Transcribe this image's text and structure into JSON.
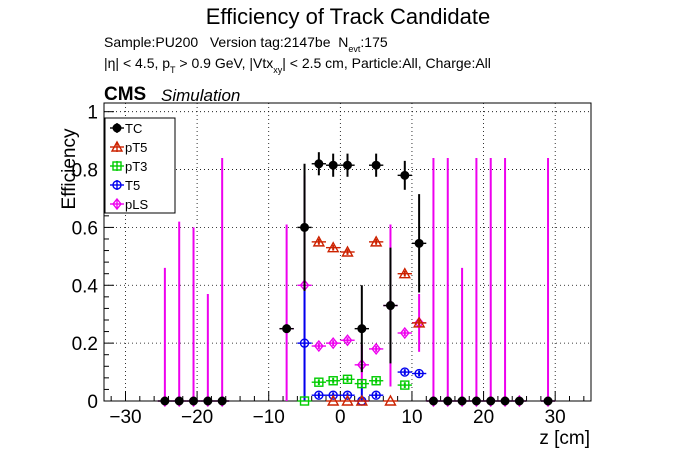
{
  "chart_data": {
    "type": "scatter",
    "title": "Efficiency of Track Candidate",
    "info": {
      "sample": "Sample:PU200",
      "version": "Version tag:2147be",
      "nevt_prefix": "N",
      "nevt_sub": "evt",
      "nevt_value": ":175",
      "cuts": "|η| < 4.5, p",
      "cuts_sub": "T",
      "cuts_mid": " > 0.9 GeV, |Vtx",
      "cuts_sub2": "xy",
      "cuts_end": "| < 2.5 cm, Particle:All, Charge:All"
    },
    "cms_label": "CMS",
    "sim_label": "Simulation",
    "xlabel": "z [cm]",
    "ylabel": "Efficiency",
    "xlim": [
      -33,
      35
    ],
    "ylim": [
      0,
      1.03
    ],
    "xticks": [
      -30,
      -20,
      -10,
      0,
      10,
      20,
      30
    ],
    "yticks": [
      0,
      0.2,
      0.4,
      0.6,
      0.8,
      1
    ],
    "grid": true,
    "legend_position": "top-left",
    "series": [
      {
        "name": "TC",
        "color": "#000000",
        "marker": "filled-circle",
        "points": [
          {
            "x": -24.5,
            "y": 0,
            "err": 0
          },
          {
            "x": -22.5,
            "y": 0,
            "err": 0
          },
          {
            "x": -20.5,
            "y": 0,
            "err": 0
          },
          {
            "x": -18.5,
            "y": 0,
            "err": 0
          },
          {
            "x": -16.5,
            "y": 0,
            "err": 0
          },
          {
            "x": -7.5,
            "y": 0.25,
            "err": 0
          },
          {
            "x": -5.0,
            "y": 0.6,
            "err": 0.22
          },
          {
            "x": -3.0,
            "y": 0.82,
            "err": 0.04
          },
          {
            "x": -1.0,
            "y": 0.815,
            "err": 0.04
          },
          {
            "x": 1.0,
            "y": 0.815,
            "err": 0.04
          },
          {
            "x": 3.0,
            "y": 0.25,
            "err": 0.15
          },
          {
            "x": 5.0,
            "y": 0.815,
            "err": 0.04
          },
          {
            "x": 7.0,
            "y": 0.33,
            "err": 0.2
          },
          {
            "x": 9.0,
            "y": 0.78,
            "err": 0.05
          },
          {
            "x": 11.0,
            "y": 0.545,
            "err": 0.17
          },
          {
            "x": 13.0,
            "y": 0,
            "err": 0
          },
          {
            "x": 15.0,
            "y": 0,
            "err": 0
          },
          {
            "x": 17.0,
            "y": 0,
            "err": 0
          },
          {
            "x": 19.0,
            "y": 0,
            "err": 0
          },
          {
            "x": 21.0,
            "y": 0,
            "err": 0
          },
          {
            "x": 23.0,
            "y": 0,
            "err": 0
          },
          {
            "x": 25.0,
            "y": 0,
            "err": 0
          },
          {
            "x": 29.0,
            "y": 0,
            "err": 0
          }
        ]
      },
      {
        "name": "pT5",
        "color": "#cc2200",
        "marker": "open-triangle",
        "points": [
          {
            "x": -1.0,
            "y": 0,
            "err": 0
          },
          {
            "x": 1.0,
            "y": 0,
            "err": 0
          },
          {
            "x": -3.0,
            "y": 0.55,
            "err": 0.01
          },
          {
            "x": -1.0,
            "y": 0.53,
            "err": 0.01
          },
          {
            "x": 1.0,
            "y": 0.515,
            "err": 0.01
          },
          {
            "x": 5.0,
            "y": 0.55,
            "err": 0.01
          },
          {
            "x": 9.0,
            "y": 0.44,
            "err": 0.01
          },
          {
            "x": 11.0,
            "y": 0.27,
            "err": 0.01
          },
          {
            "x": 3.0,
            "y": 0.0,
            "err": 0
          },
          {
            "x": 7.0,
            "y": 0.0,
            "err": 0
          }
        ]
      },
      {
        "name": "pT3",
        "color": "#00cc00",
        "marker": "open-square",
        "points": [
          {
            "x": -5.0,
            "y": 0,
            "err": 0
          },
          {
            "x": -3.0,
            "y": 0.065,
            "err": 0.01
          },
          {
            "x": -1.0,
            "y": 0.07,
            "err": 0.01
          },
          {
            "x": 1.0,
            "y": 0.075,
            "err": 0.01
          },
          {
            "x": 3.0,
            "y": 0.06,
            "err": 0.01
          },
          {
            "x": 5.0,
            "y": 0.07,
            "err": 0.01
          },
          {
            "x": 9.0,
            "y": 0.055,
            "err": 0.01
          }
        ]
      },
      {
        "name": "T5",
        "color": "#0000ee",
        "marker": "open-circle",
        "points": [
          {
            "x": -5.0,
            "y": 0.2,
            "err": 0.2
          },
          {
            "x": -3.0,
            "y": 0.02,
            "err": 0.01
          },
          {
            "x": -1.0,
            "y": 0.02,
            "err": 0.01
          },
          {
            "x": 1.0,
            "y": 0.02,
            "err": 0.01
          },
          {
            "x": 3.0,
            "y": 0.0,
            "err": 0.05
          },
          {
            "x": 5.0,
            "y": 0.02,
            "err": 0.01
          },
          {
            "x": 9.0,
            "y": 0.1,
            "err": 0.01
          },
          {
            "x": 11.0,
            "y": 0.095,
            "err": 0.01
          }
        ]
      },
      {
        "name": "pLS",
        "color": "#ee00ee",
        "marker": "open-diamond",
        "points": [
          {
            "x": -24.5,
            "y": 0,
            "err": 0.46
          },
          {
            "x": -22.5,
            "y": 0,
            "err": 0.62
          },
          {
            "x": -20.5,
            "y": 0,
            "err": 0.6
          },
          {
            "x": -18.5,
            "y": 0,
            "err": 0.37
          },
          {
            "x": -16.5,
            "y": 0,
            "err": 0.84
          },
          {
            "x": -7.5,
            "y": 0.25,
            "err": 0.36
          },
          {
            "x": -5.0,
            "y": 0.4,
            "err": 0.38
          },
          {
            "x": -3.0,
            "y": 0.19,
            "err": 0.01
          },
          {
            "x": -1.0,
            "y": 0.2,
            "err": 0.01
          },
          {
            "x": 1.0,
            "y": 0.21,
            "err": 0.01
          },
          {
            "x": 3.0,
            "y": 0.125,
            "err": 0.07
          },
          {
            "x": 5.0,
            "y": 0.18,
            "err": 0.01
          },
          {
            "x": 7.0,
            "y": 0.33,
            "err": 0.28
          },
          {
            "x": 9.0,
            "y": 0.235,
            "err": 0.01
          },
          {
            "x": 11.0,
            "y": 0.27,
            "err": 0.1
          },
          {
            "x": 13.0,
            "y": 0,
            "err": 0.84
          },
          {
            "x": 15.0,
            "y": 0,
            "err": 0.84
          },
          {
            "x": 17.0,
            "y": 0,
            "err": 0.46
          },
          {
            "x": 19.0,
            "y": 0,
            "err": 0.84
          },
          {
            "x": 21.0,
            "y": 0,
            "err": 0.84
          },
          {
            "x": 23.0,
            "y": 0,
            "err": 0.84
          },
          {
            "x": 25.0,
            "y": 0,
            "err": 0.0
          },
          {
            "x": 29.0,
            "y": 0,
            "err": 0.84
          }
        ]
      }
    ]
  }
}
